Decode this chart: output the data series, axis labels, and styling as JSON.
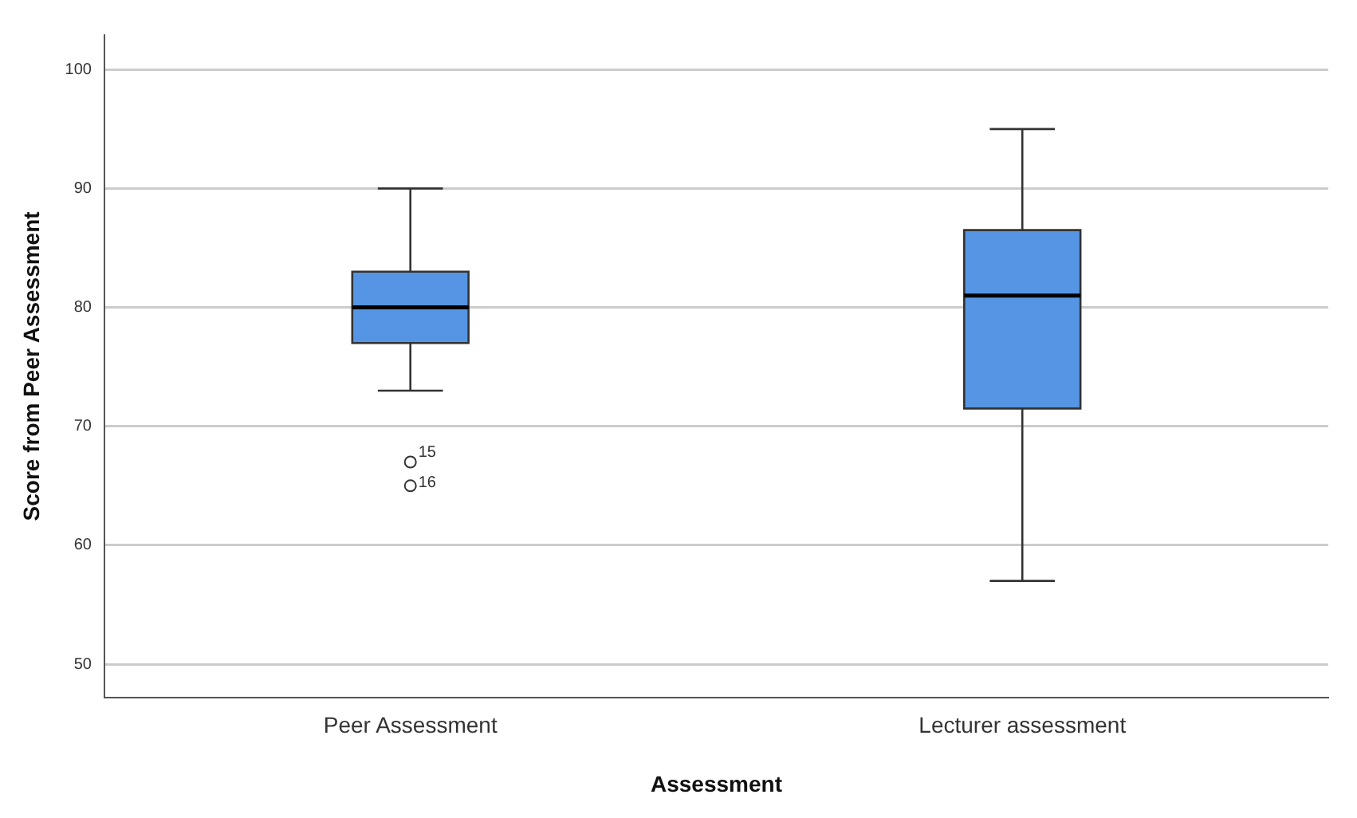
{
  "chart_data": {
    "type": "box",
    "xlabel": "Assessment",
    "ylabel": "Score from Peer Assessment",
    "categories": [
      "Peer Assessment",
      "Lecturer assessment"
    ],
    "series": [
      {
        "color": "#5595e3",
        "boxes": [
          {
            "low": 73,
            "q1": 77,
            "median": 80,
            "q3": 83,
            "high": 90,
            "outliers": [
              67,
              65
            ]
          },
          {
            "low": 57,
            "q1": 71.5,
            "median": 81,
            "q3": 86.5,
            "high": 95
          }
        ]
      }
    ],
    "ylim": [
      47.2,
      102.9
    ],
    "yticks": [
      50,
      60,
      70,
      80,
      90,
      100
    ],
    "grid": "y",
    "legend": false,
    "annotations": [
      "15",
      "16"
    ]
  }
}
